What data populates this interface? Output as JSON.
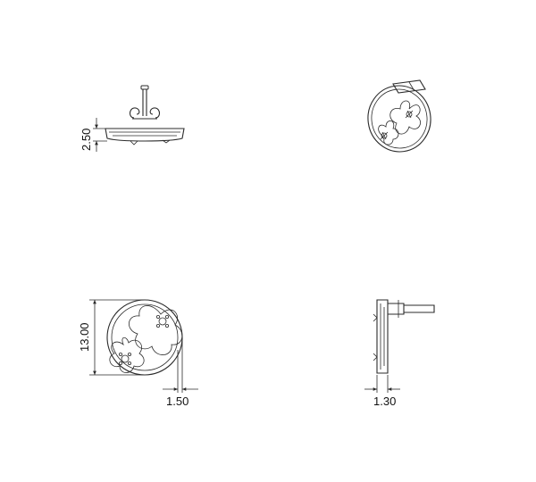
{
  "views": [
    {
      "name": "side-view",
      "dimension": "2.50"
    },
    {
      "name": "perspective-view"
    },
    {
      "name": "front-view",
      "dimensions": [
        "13.00",
        "1.50"
      ]
    },
    {
      "name": "profile-view",
      "dimension": "1.30"
    }
  ],
  "dims": {
    "side_height": "2.50",
    "front_diameter": "13.00",
    "front_offset": "1.50",
    "profile_thickness": "1.30"
  },
  "colors": {
    "line": "#2b2b2b",
    "background": "#ffffff"
  }
}
